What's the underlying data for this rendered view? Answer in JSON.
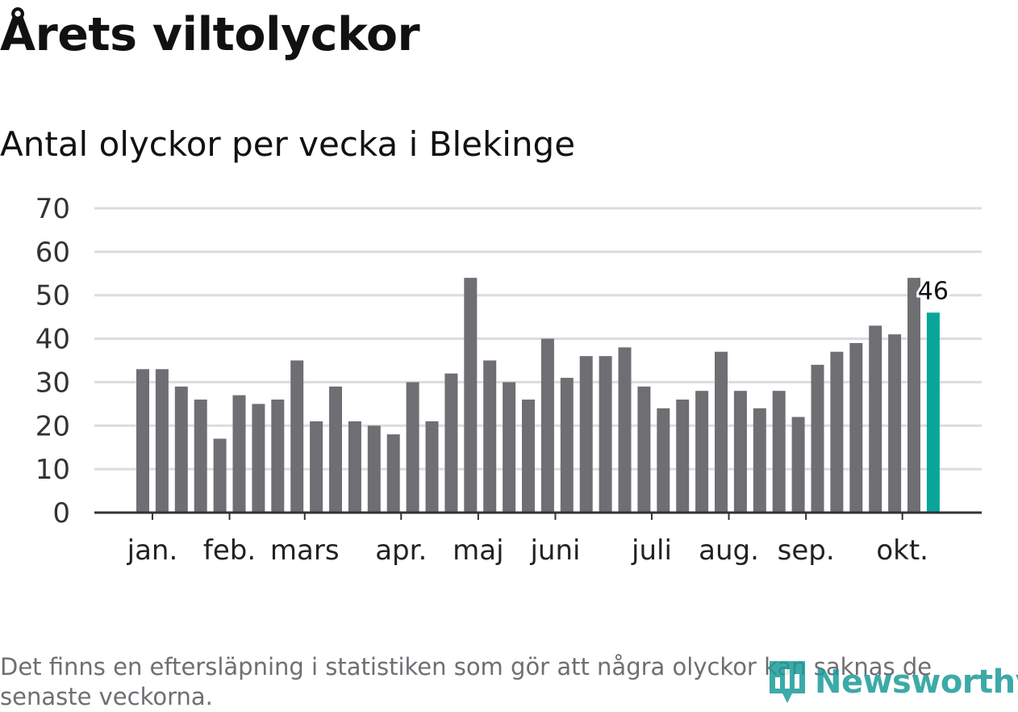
{
  "title": "Årets viltolyckor",
  "subtitle": "Antal olyckor per vecka i Blekinge",
  "footnote": "Det finns en eftersläpning i statistiken som gör att några olyckor kan saknas de senaste veckorna.",
  "brand": {
    "name": "Newsworthy",
    "icon": "bar-chart-pin-icon"
  },
  "colors": {
    "bar": "#6f6e73",
    "highlight": "#0aa59a",
    "grid": "#dcdcdc",
    "axis": "#333333",
    "brand": "#1b9c99"
  },
  "chart_data": {
    "type": "bar",
    "title": "Antal olyckor per vecka i Blekinge",
    "xlabel": "",
    "ylabel": "",
    "ylim": [
      0,
      70
    ],
    "yticks": [
      0,
      10,
      20,
      30,
      40,
      50,
      60,
      70
    ],
    "grid": true,
    "values": [
      33,
      33,
      29,
      26,
      17,
      27,
      25,
      26,
      35,
      21,
      29,
      21,
      20,
      18,
      30,
      21,
      32,
      54,
      35,
      30,
      26,
      40,
      31,
      36,
      36,
      38,
      29,
      24,
      26,
      28,
      37,
      28,
      24,
      28,
      22,
      34,
      37,
      39,
      43,
      41,
      54,
      46
    ],
    "highlight_index": 41,
    "highlight_label": "46",
    "month_ticks": [
      {
        "label": "jan.",
        "bar_index": 0.5
      },
      {
        "label": "feb.",
        "bar_index": 4.5
      },
      {
        "label": "mars",
        "bar_index": 8.4
      },
      {
        "label": "apr.",
        "bar_index": 13.4
      },
      {
        "label": "maj",
        "bar_index": 17.4
      },
      {
        "label": "juni",
        "bar_index": 21.4
      },
      {
        "label": "juli",
        "bar_index": 26.4
      },
      {
        "label": "aug.",
        "bar_index": 30.4
      },
      {
        "label": "sep.",
        "bar_index": 34.4
      },
      {
        "label": "okt.",
        "bar_index": 39.4
      }
    ]
  }
}
